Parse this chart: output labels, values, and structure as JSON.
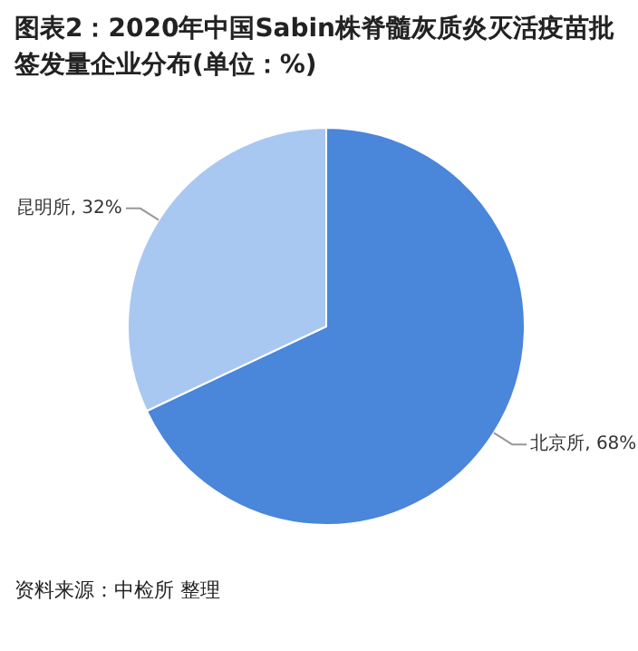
{
  "chart_data": {
    "type": "pie",
    "title": "图表2：2020年中国Sabin株脊髓灰质炎灭活疫苗批签发量企业分布(单位：%)",
    "categories": [
      "北京所",
      "昆明所"
    ],
    "values": [
      68,
      32
    ],
    "colors": [
      "#4a86d9",
      "#a8c8f2"
    ],
    "value_labels": [
      "68%",
      "32%"
    ],
    "legend": false,
    "annotations": [
      "资料来源：中检所 整理"
    ]
  }
}
